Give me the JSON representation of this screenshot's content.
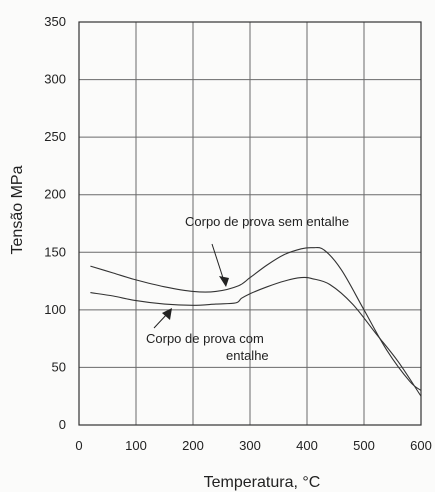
{
  "chart_data": {
    "type": "line",
    "title": "",
    "xlabel": "Temperatura, °C",
    "ylabel": "Tensão MPa",
    "xlim": [
      0,
      600
    ],
    "ylim": [
      0,
      350
    ],
    "xticks": [
      0,
      100,
      200,
      300,
      400,
      500,
      600
    ],
    "yticks": [
      0,
      50,
      100,
      150,
      200,
      250,
      300,
      350
    ],
    "grid": true,
    "series": [
      {
        "name": "Corpo de prova sem entalhe",
        "x": [
          20,
          60,
          100,
          150,
          200,
          240,
          280,
          300,
          330,
          360,
          390,
          410,
          430,
          460,
          500,
          540,
          580,
          600
        ],
        "y": [
          138,
          132,
          126,
          120,
          116,
          116,
          121,
          128,
          139,
          148,
          153,
          154,
          152,
          135,
          100,
          65,
          38,
          30
        ]
      },
      {
        "name": "Corpo de prova com entalhe",
        "x": [
          20,
          60,
          100,
          150,
          200,
          240,
          275,
          285,
          300,
          330,
          360,
          390,
          410,
          440,
          480,
          520,
          560,
          600
        ],
        "y": [
          115,
          112,
          108,
          105,
          104,
          105,
          106,
          110,
          114,
          120,
          125,
          128,
          127,
          122,
          105,
          80,
          55,
          25
        ]
      }
    ],
    "annotations": [
      {
        "lines": [
          "Corpo de prova sem entalhe"
        ],
        "target_series": 0
      },
      {
        "lines": [
          "Corpo de prova com",
          "entalhe"
        ],
        "target_series": 1
      }
    ]
  }
}
